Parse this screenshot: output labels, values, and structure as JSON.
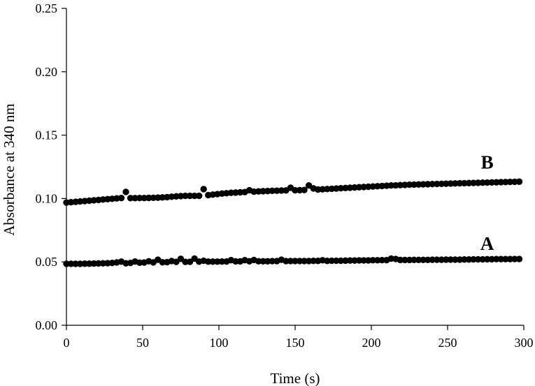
{
  "chart_data": {
    "type": "scatter",
    "xlabel": "Time (s)",
    "ylabel": "Absorbance at 340 nm",
    "xlim": [
      0,
      300
    ],
    "ylim": [
      0,
      0.25
    ],
    "x_ticks": [
      0,
      50,
      100,
      150,
      200,
      250,
      300
    ],
    "x_tick_labels": [
      "0",
      "50",
      "100",
      "150",
      "200",
      "250",
      "300"
    ],
    "y_ticks": [
      0,
      0.05,
      0.1,
      0.15,
      0.2,
      0.25
    ],
    "y_tick_labels": [
      "0.00",
      "0.05",
      "0.10",
      "0.15",
      "0.20",
      "0.25"
    ],
    "grid": false,
    "marker_color": "#000000",
    "series": [
      {
        "name": "A",
        "x": [
          0,
          3,
          6,
          9,
          12,
          15,
          18,
          21,
          24,
          27,
          30,
          33,
          36,
          39,
          42,
          45,
          48,
          51,
          54,
          57,
          60,
          63,
          66,
          69,
          72,
          75,
          78,
          81,
          84,
          87,
          90,
          93,
          96,
          99,
          102,
          105,
          108,
          111,
          114,
          117,
          120,
          123,
          126,
          129,
          132,
          135,
          138,
          141,
          144,
          147,
          150,
          153,
          156,
          159,
          162,
          165,
          168,
          171,
          174,
          177,
          180,
          183,
          186,
          189,
          192,
          195,
          198,
          201,
          204,
          207,
          210,
          213,
          216,
          219,
          222,
          225,
          228,
          231,
          234,
          237,
          240,
          243,
          246,
          249,
          252,
          255,
          258,
          261,
          264,
          267,
          270,
          273,
          276,
          279,
          282,
          285,
          288,
          291,
          294,
          297
        ],
        "y": [
          0.0485,
          0.0485,
          0.0485,
          0.0485,
          0.0486,
          0.0486,
          0.0487,
          0.0488,
          0.0489,
          0.049,
          0.0492,
          0.0496,
          0.0502,
          0.0489,
          0.0492,
          0.0503,
          0.0494,
          0.0495,
          0.0505,
          0.0496,
          0.0517,
          0.0497,
          0.0498,
          0.0507,
          0.05,
          0.0524,
          0.05,
          0.0501,
          0.0526,
          0.0502,
          0.0509,
          0.0502,
          0.0502,
          0.0502,
          0.0503,
          0.0503,
          0.0514,
          0.0504,
          0.0504,
          0.0514,
          0.0505,
          0.0515,
          0.0505,
          0.0505,
          0.0505,
          0.0506,
          0.0506,
          0.0517,
          0.0506,
          0.0507,
          0.0507,
          0.0507,
          0.0507,
          0.0507,
          0.0508,
          0.0508,
          0.0513,
          0.0508,
          0.0509,
          0.0509,
          0.0509,
          0.051,
          0.0511,
          0.0511,
          0.0512,
          0.0512,
          0.0512,
          0.0513,
          0.0513,
          0.0514,
          0.0514,
          0.0526,
          0.0523,
          0.0515,
          0.0515,
          0.0515,
          0.0516,
          0.0516,
          0.0516,
          0.0516,
          0.0517,
          0.0517,
          0.0517,
          0.0518,
          0.0518,
          0.0518,
          0.0518,
          0.0519,
          0.0519,
          0.052,
          0.052,
          0.052,
          0.0521,
          0.0521,
          0.0522,
          0.0522,
          0.0522,
          0.0522,
          0.0523,
          0.0523
        ]
      },
      {
        "name": "B",
        "x": [
          0,
          3,
          6,
          9,
          12,
          15,
          18,
          21,
          24,
          27,
          30,
          33,
          36,
          39,
          42,
          45,
          48,
          51,
          54,
          57,
          60,
          63,
          66,
          69,
          72,
          75,
          78,
          81,
          84,
          87,
          90,
          93,
          96,
          99,
          102,
          105,
          108,
          111,
          114,
          117,
          120,
          123,
          126,
          129,
          132,
          135,
          138,
          141,
          144,
          147,
          150,
          153,
          156,
          159,
          162,
          165,
          168,
          171,
          174,
          177,
          180,
          183,
          186,
          189,
          192,
          195,
          198,
          201,
          204,
          207,
          210,
          213,
          216,
          219,
          222,
          225,
          228,
          231,
          234,
          237,
          240,
          243,
          246,
          249,
          252,
          255,
          258,
          261,
          264,
          267,
          270,
          273,
          276,
          279,
          282,
          285,
          288,
          291,
          294,
          297
        ],
        "y": [
          0.0968,
          0.0971,
          0.0974,
          0.0977,
          0.098,
          0.0983,
          0.0986,
          0.0989,
          0.0992,
          0.0995,
          0.0998,
          0.1001,
          0.1004,
          0.1052,
          0.1003,
          0.1003,
          0.1004,
          0.1004,
          0.1005,
          0.1006,
          0.1007,
          0.1009,
          0.1011,
          0.1014,
          0.1017,
          0.1019,
          0.1021,
          0.1021,
          0.1021,
          0.1021,
          0.1074,
          0.1027,
          0.1031,
          0.1035,
          0.1039,
          0.1042,
          0.1045,
          0.1047,
          0.1049,
          0.1051,
          0.1065,
          0.1054,
          0.1056,
          0.1058,
          0.1059,
          0.1061,
          0.1062,
          0.1063,
          0.1064,
          0.1085,
          0.1065,
          0.1066,
          0.1067,
          0.1103,
          0.108,
          0.1071,
          0.1073,
          0.1075,
          0.1077,
          0.1079,
          0.1081,
          0.1083,
          0.1085,
          0.1087,
          0.1089,
          0.1091,
          0.1093,
          0.1095,
          0.1097,
          0.1099,
          0.1101,
          0.1103,
          0.1104,
          0.1106,
          0.1107,
          0.1109,
          0.111,
          0.1111,
          0.1112,
          0.1113,
          0.1114,
          0.1115,
          0.1116,
          0.1117,
          0.1118,
          0.1119,
          0.112,
          0.1121,
          0.1122,
          0.1123,
          0.1124,
          0.1125,
          0.1126,
          0.1127,
          0.1128,
          0.1129,
          0.113,
          0.1131,
          0.1132,
          0.1133
        ]
      }
    ]
  }
}
